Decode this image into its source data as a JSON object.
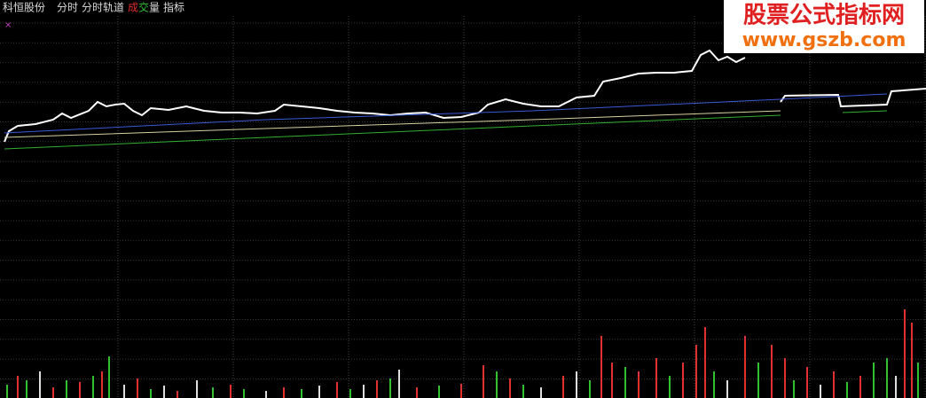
{
  "toolbar": {
    "stock_name": "科恒股份",
    "tabs": [
      "分时",
      "分时轨道"
    ],
    "volume_tab": [
      "成",
      "交",
      "量"
    ],
    "indicator_tab": "指标",
    "marker": "×"
  },
  "watermark": {
    "title": "股票公式指标网",
    "url": "www.gszb.com"
  },
  "chart_data": [
    {
      "type": "line",
      "xlim": [
        0,
        1044
      ],
      "ylim": [
        0,
        340
      ],
      "series": [
        {
          "color": "#ffffff",
          "x": [
            5,
            10,
            20,
            40,
            60,
            70,
            80,
            100,
            110,
            120,
            130,
            140,
            150,
            160,
            170,
            190,
            210,
            230,
            250,
            270,
            290,
            310,
            320,
            340,
            360,
            380,
            400,
            420,
            440,
            460,
            480,
            500,
            520,
            540,
            550,
            570,
            590,
            610,
            630,
            650,
            670,
            680,
            700,
            720,
            740,
            760,
            780,
            790,
            800,
            810,
            820,
            830,
            840,
            null,
            880,
            885,
            945,
            948,
            1000,
            1005,
            1044
          ],
          "values": [
            180,
            192,
            198,
            200,
            205,
            212,
            207,
            215,
            225,
            220,
            222,
            223,
            215,
            210,
            218,
            216,
            220,
            215,
            213,
            213,
            212,
            215,
            222,
            220,
            218,
            215,
            213,
            212,
            210,
            212,
            213,
            207,
            208,
            213,
            222,
            228,
            223,
            220,
            220,
            230,
            232,
            248,
            252,
            257,
            258,
            258,
            260,
            278,
            283,
            272,
            276,
            270,
            275,
            null,
            225,
            232,
            233,
            220,
            222,
            237,
            240
          ]
        },
        {
          "color": "#3a5ad8",
          "x": [
            5,
            300,
            600,
            880,
            1000
          ],
          "values": [
            190,
            205,
            215,
            228,
            234
          ]
        },
        {
          "color": "#d8d0a0",
          "x": [
            5,
            300,
            600,
            880
          ],
          "values": [
            185,
            195,
            205,
            215
          ]
        },
        {
          "color": "#30b030",
          "x": [
            5,
            300,
            600,
            880,
            null,
            950,
            1000
          ],
          "values": [
            172,
            185,
            198,
            210,
            null,
            213,
            215
          ]
        }
      ]
    },
    {
      "type": "bar",
      "xlim": [
        0,
        1044
      ],
      "ylim": [
        0,
        449
      ],
      "x": [
        8,
        20,
        30,
        45,
        60,
        75,
        90,
        105,
        115,
        123,
        140,
        155,
        170,
        185,
        200,
        222,
        240,
        260,
        275,
        300,
        320,
        340,
        360,
        380,
        395,
        410,
        425,
        440,
        450,
        470,
        495,
        520,
        545,
        560,
        575,
        590,
        610,
        635,
        650,
        665,
        678,
        690,
        705,
        720,
        740,
        755,
        770,
        785,
        795,
        805,
        820,
        840,
        855,
        870,
        885,
        895,
        910,
        925,
        940,
        955,
        970,
        985,
        1000,
        1010,
        1020,
        1028,
        1035
      ],
      "values": [
        15,
        25,
        20,
        30,
        12,
        20,
        18,
        25,
        30,
        47,
        15,
        22,
        10,
        14,
        8,
        20,
        12,
        15,
        10,
        8,
        12,
        10,
        14,
        18,
        10,
        15,
        20,
        22,
        32,
        12,
        14,
        16,
        37,
        30,
        22,
        15,
        12,
        25,
        30,
        20,
        70,
        40,
        35,
        30,
        45,
        25,
        40,
        60,
        80,
        30,
        20,
        70,
        40,
        60,
        45,
        20,
        35,
        15,
        30,
        18,
        25,
        40,
        45,
        25,
        100,
        85,
        40
      ],
      "colors": [
        "#30c030",
        "#e03030",
        "#30c030",
        "#dddddd",
        "#e03030",
        "#30c030",
        "#e03030",
        "#30c030",
        "#e03030",
        "#30c030",
        "#dddddd",
        "#e03030",
        "#30c030",
        "#dddddd",
        "#e03030",
        "#dddddd",
        "#30c030",
        "#e03030",
        "#30c030",
        "#dddddd",
        "#e03030",
        "#30c030",
        "#dddddd",
        "#e03030",
        "#30c030",
        "#dddddd",
        "#e03030",
        "#30c030",
        "#dddddd",
        "#e03030",
        "#30c030",
        "#e03030",
        "#e03030",
        "#30c030",
        "#e03030",
        "#30c030",
        "#dddddd",
        "#e03030",
        "#dddddd",
        "#30c030",
        "#e03030",
        "#e03030",
        "#30c030",
        "#e03030",
        "#e03030",
        "#30c030",
        "#e03030",
        "#e03030",
        "#e03030",
        "#30c030",
        "#dddddd",
        "#e03030",
        "#30c030",
        "#e03030",
        "#e03030",
        "#30c030",
        "#e03030",
        "#dddddd",
        "#e03030",
        "#30c030",
        "#e03030",
        "#30c030",
        "#30c030",
        "#dddddd",
        "#e03030",
        "#e03030",
        "#30c030"
      ]
    }
  ]
}
